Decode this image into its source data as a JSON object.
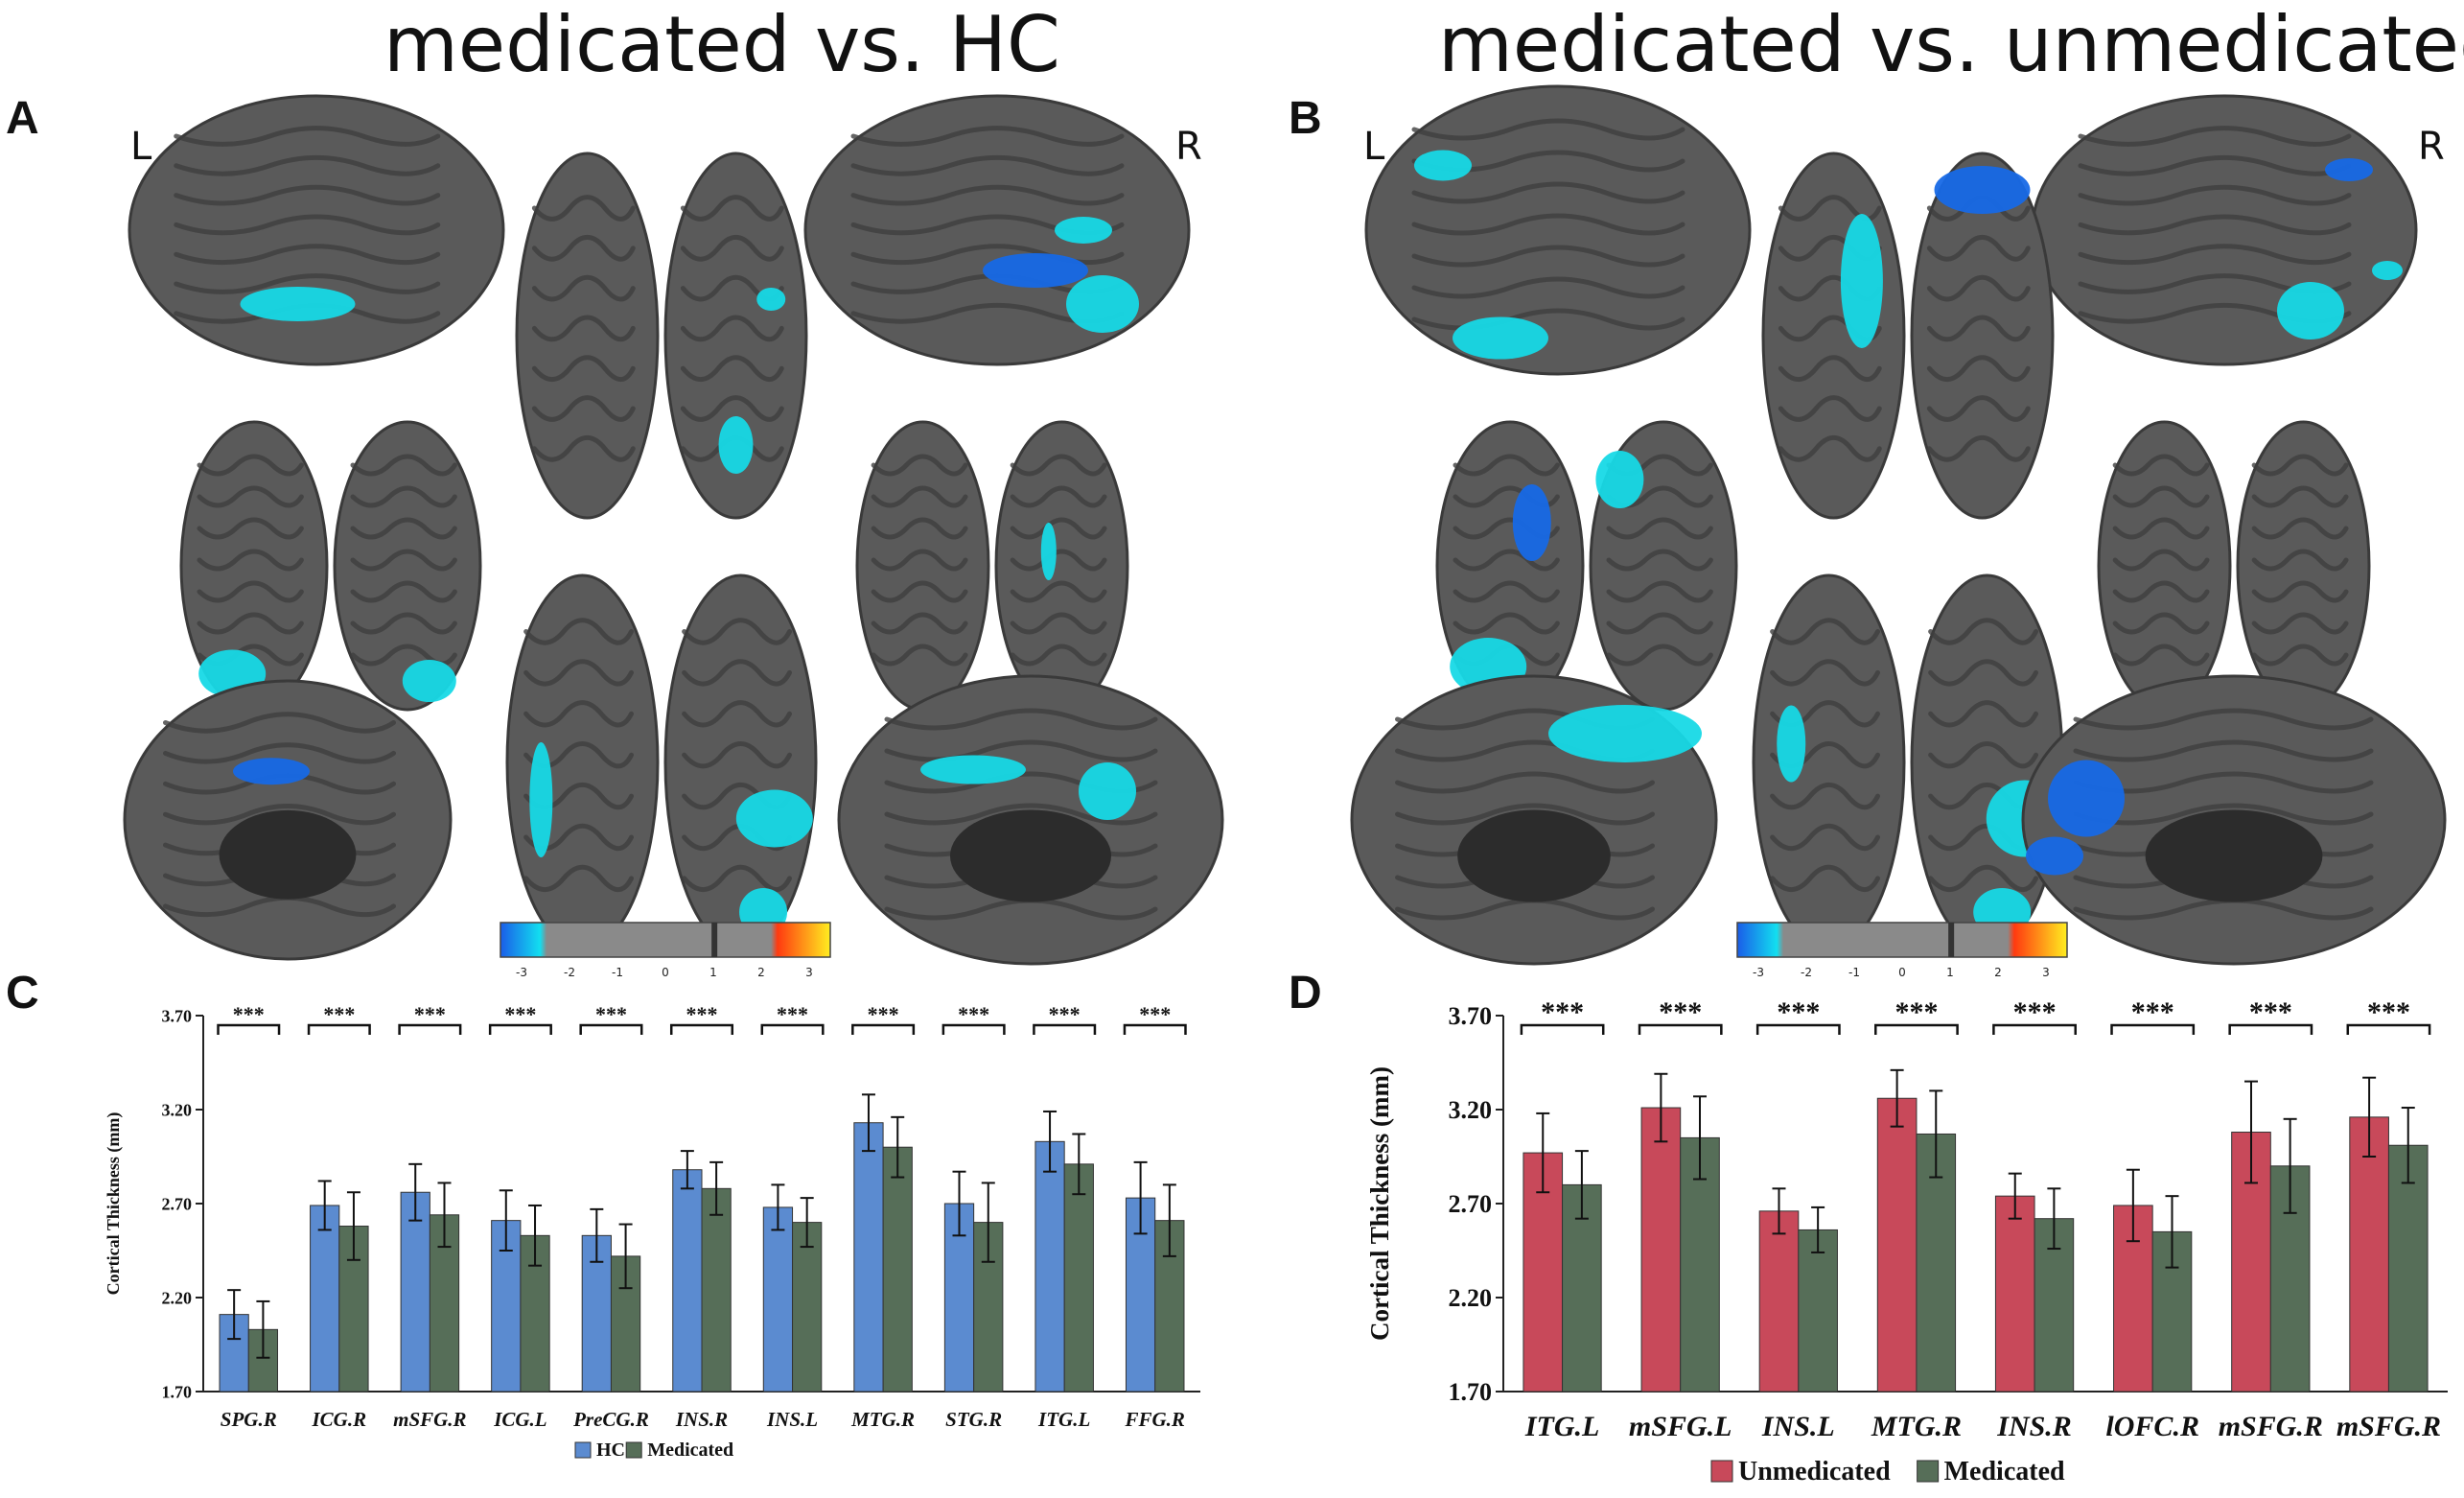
{
  "titles": {
    "left": "medicated vs. HC",
    "right": "medicated vs. unmedicated"
  },
  "panels": {
    "a": "A",
    "b": "B",
    "c": "C",
    "d": "D"
  },
  "hemispheres": {
    "left": "L",
    "right": "R"
  },
  "colorbar": {
    "ticks": [
      "-3",
      "-2",
      "-1",
      "0",
      "1",
      "2",
      "3"
    ]
  },
  "colors": {
    "hc": "#5b8bd0",
    "medicated": "#566e58",
    "unmedicated": "#c8495a",
    "brain": "#5a5a5a",
    "blob_light": "#17d9e6",
    "blob_dark": "#1769e6"
  },
  "chart_data": [
    {
      "type": "bar",
      "panel": "C",
      "categories": [
        "SPG.R",
        "ICG.R",
        "mSFG.R",
        "ICG.L",
        "PreCG.R",
        "INS.R",
        "INS.L",
        "MTG.R",
        "STG.R",
        "ITG.L",
        "FFG.R"
      ],
      "series": [
        {
          "name": "HC",
          "values": [
            2.11,
            2.69,
            2.76,
            2.61,
            2.53,
            2.88,
            2.68,
            3.13,
            2.7,
            3.03,
            2.73
          ],
          "errors": [
            0.13,
            0.13,
            0.15,
            0.16,
            0.14,
            0.1,
            0.12,
            0.15,
            0.17,
            0.16,
            0.19
          ]
        },
        {
          "name": "Medicated",
          "values": [
            2.03,
            2.58,
            2.64,
            2.53,
            2.42,
            2.78,
            2.6,
            3.0,
            2.6,
            2.91,
            2.61
          ],
          "errors": [
            0.15,
            0.18,
            0.17,
            0.16,
            0.17,
            0.14,
            0.13,
            0.16,
            0.21,
            0.16,
            0.19
          ]
        }
      ],
      "significance": "***",
      "ylabel": "Cortical Thickness (mm)",
      "ylim": [
        1.7,
        3.7
      ],
      "yticks": [
        "1.70",
        "2.20",
        "2.70",
        "3.20",
        "3.70"
      ],
      "legend_position": "bottom-center"
    },
    {
      "type": "bar",
      "panel": "D",
      "categories": [
        "ITG.L",
        "mSFG.L",
        "INS.L",
        "MTG.R",
        "INS.R",
        "lOFC.R",
        "mSFG.R",
        "mSFG.R"
      ],
      "series": [
        {
          "name": "Unmedicated",
          "values": [
            2.97,
            3.21,
            2.66,
            3.26,
            2.74,
            2.69,
            3.08,
            3.16
          ],
          "errors": [
            0.21,
            0.18,
            0.12,
            0.15,
            0.12,
            0.19,
            0.27,
            0.21
          ]
        },
        {
          "name": "Medicated",
          "values": [
            2.8,
            3.05,
            2.56,
            3.07,
            2.62,
            2.55,
            2.9,
            3.01
          ],
          "errors": [
            0.18,
            0.22,
            0.12,
            0.23,
            0.16,
            0.19,
            0.25,
            0.2
          ]
        }
      ],
      "significance": "***",
      "ylabel": "Cortical Thickness (mm)",
      "ylim": [
        1.7,
        3.7
      ],
      "yticks": [
        "1.70",
        "2.20",
        "2.70",
        "3.20",
        "3.70"
      ],
      "legend_position": "bottom-center"
    }
  ]
}
